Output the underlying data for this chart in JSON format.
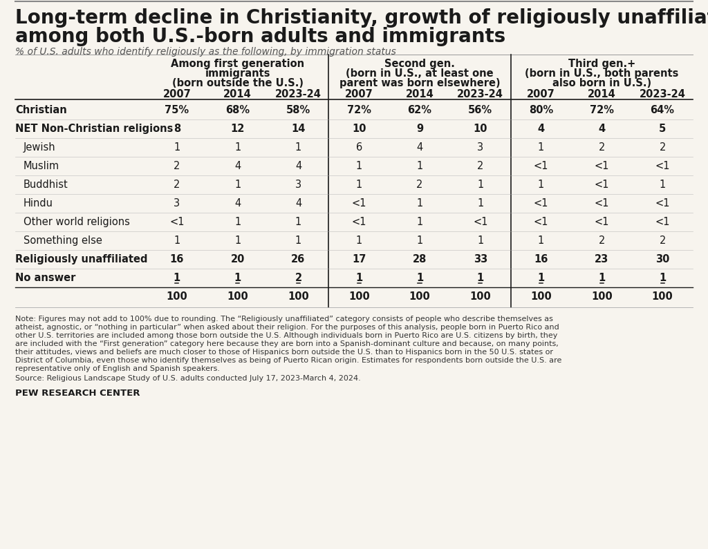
{
  "title_line1": "Long-term decline in Christianity, growth of religiously unaffiliated is evident",
  "title_line2": "among both U.S.-born adults and immigrants",
  "subtitle": "% of U.S. adults who identify religiously as the following, by immigration status",
  "col_groups": [
    {
      "lines": [
        "Among first generation",
        "immigrants",
        "(born outside the U.S.)"
      ],
      "years": [
        "2007",
        "2014",
        "2023-24"
      ]
    },
    {
      "lines": [
        "Second gen.",
        "(born in U.S., at least one",
        "parent was born elsewhere)"
      ],
      "years": [
        "2007",
        "2014",
        "2023-24"
      ]
    },
    {
      "lines": [
        "Third gen.+",
        "(born in U.S., both parents",
        "also born in U.S.)"
      ],
      "years": [
        "2007",
        "2014",
        "2023-24"
      ]
    }
  ],
  "rows": [
    {
      "label": "Christian",
      "bold": true,
      "underline": false,
      "indent": false,
      "values": [
        "75%",
        "68%",
        "58%",
        "72%",
        "62%",
        "56%",
        "80%",
        "72%",
        "64%"
      ]
    },
    {
      "label": "NET Non-Christian religions",
      "bold": true,
      "underline": false,
      "indent": false,
      "values": [
        "8",
        "12",
        "14",
        "10",
        "9",
        "10",
        "4",
        "4",
        "5"
      ]
    },
    {
      "label": "Jewish",
      "bold": false,
      "underline": false,
      "indent": true,
      "values": [
        "1",
        "1",
        "1",
        "6",
        "4",
        "3",
        "1",
        "2",
        "2"
      ]
    },
    {
      "label": "Muslim",
      "bold": false,
      "underline": false,
      "indent": true,
      "values": [
        "2",
        "4",
        "4",
        "1",
        "1",
        "2",
        "<1",
        "<1",
        "<1"
      ]
    },
    {
      "label": "Buddhist",
      "bold": false,
      "underline": false,
      "indent": true,
      "values": [
        "2",
        "1",
        "3",
        "1",
        "2",
        "1",
        "1",
        "<1",
        "1"
      ]
    },
    {
      "label": "Hindu",
      "bold": false,
      "underline": false,
      "indent": true,
      "values": [
        "3",
        "4",
        "4",
        "<1",
        "1",
        "1",
        "<1",
        "<1",
        "<1"
      ]
    },
    {
      "label": "Other world religions",
      "bold": false,
      "underline": false,
      "indent": true,
      "values": [
        "<1",
        "1",
        "1",
        "<1",
        "1",
        "<1",
        "<1",
        "<1",
        "<1"
      ]
    },
    {
      "label": "Something else",
      "bold": false,
      "underline": false,
      "indent": true,
      "values": [
        "1",
        "1",
        "1",
        "1",
        "1",
        "1",
        "1",
        "2",
        "2"
      ]
    },
    {
      "label": "Religiously unaffiliated",
      "bold": true,
      "underline": false,
      "indent": false,
      "values": [
        "16",
        "20",
        "26",
        "17",
        "28",
        "33",
        "16",
        "23",
        "30"
      ]
    },
    {
      "label": "No answer",
      "bold": true,
      "underline": true,
      "indent": false,
      "values": [
        "1",
        "1",
        "2",
        "1",
        "1",
        "1",
        "1",
        "1",
        "1"
      ]
    },
    {
      "label": "",
      "bold": true,
      "underline": false,
      "indent": false,
      "values": [
        "100",
        "100",
        "100",
        "100",
        "100",
        "100",
        "100",
        "100",
        "100"
      ]
    }
  ],
  "note_lines": [
    "Note: Figures may not add to 100% due to rounding. The “Religiously unaffiliated” category consists of people who describe themselves as",
    "atheist, agnostic, or “nothing in particular” when asked about their religion. For the purposes of this analysis, people born in Puerto Rico and",
    "other U.S. territories are included among those born outside the U.S. Although individuals born in Puerto Rico are U.S. citizens by birth, they",
    "are included with the “First generation” category here because they are born into a Spanish-dominant culture and because, on many points,",
    "their attitudes, views and beliefs are much closer to those of Hispanics born outside the U.S. than to Hispanics born in the 50 U.S. states or",
    "District of Columbia, even those who identify themselves as being of Puerto Rican origin. Estimates for respondents born outside the U.S. are",
    "representative only of English and Spanish speakers."
  ],
  "source_text": "Source: Religious Landscape Study of U.S. adults conducted July 17, 2023-March 4, 2024.",
  "pew_text": "PEW RESEARCH CENTER",
  "bg_color": "#f7f4ee",
  "divider_color": "#1a1a1a",
  "mid_divider_color": "#aaaaaa",
  "text_color": "#1a1a1a",
  "note_color": "#333333",
  "title_fontsize": 20,
  "subtitle_fontsize": 10,
  "header_fontsize": 10.5,
  "data_fontsize": 10.5,
  "note_fontsize": 8.0,
  "pew_fontsize": 9.5
}
